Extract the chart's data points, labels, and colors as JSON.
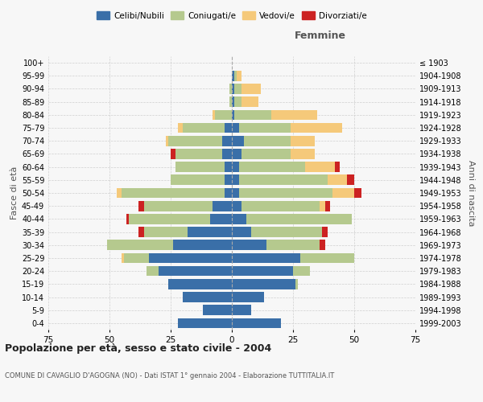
{
  "age_groups": [
    "0-4",
    "5-9",
    "10-14",
    "15-19",
    "20-24",
    "25-29",
    "30-34",
    "35-39",
    "40-44",
    "45-49",
    "50-54",
    "55-59",
    "60-64",
    "65-69",
    "70-74",
    "75-79",
    "80-84",
    "85-89",
    "90-94",
    "95-99",
    "100+"
  ],
  "birth_years": [
    "1999-2003",
    "1994-1998",
    "1989-1993",
    "1984-1988",
    "1979-1983",
    "1974-1978",
    "1969-1973",
    "1964-1968",
    "1959-1963",
    "1954-1958",
    "1949-1953",
    "1944-1948",
    "1939-1943",
    "1934-1938",
    "1929-1933",
    "1924-1928",
    "1919-1923",
    "1914-1918",
    "1909-1913",
    "1904-1908",
    "≤ 1903"
  ],
  "males": {
    "celibi": [
      22,
      12,
      20,
      26,
      30,
      34,
      24,
      18,
      9,
      8,
      3,
      3,
      3,
      4,
      4,
      3,
      0,
      0,
      0,
      0,
      0
    ],
    "coniugati": [
      0,
      0,
      0,
      0,
      5,
      10,
      27,
      18,
      33,
      28,
      42,
      22,
      20,
      19,
      22,
      17,
      7,
      1,
      1,
      0,
      0
    ],
    "vedovi": [
      0,
      0,
      0,
      0,
      0,
      1,
      0,
      0,
      0,
      0,
      2,
      0,
      0,
      0,
      1,
      2,
      1,
      0,
      0,
      0,
      0
    ],
    "divorziati": [
      0,
      0,
      0,
      0,
      0,
      0,
      0,
      2,
      1,
      2,
      0,
      0,
      0,
      2,
      0,
      0,
      0,
      0,
      0,
      0,
      0
    ]
  },
  "females": {
    "nubili": [
      20,
      8,
      13,
      26,
      25,
      28,
      14,
      8,
      6,
      4,
      3,
      3,
      3,
      4,
      5,
      3,
      1,
      1,
      1,
      1,
      0
    ],
    "coniugate": [
      0,
      0,
      0,
      1,
      7,
      22,
      22,
      29,
      43,
      32,
      38,
      36,
      27,
      20,
      19,
      21,
      15,
      3,
      3,
      1,
      0
    ],
    "vedove": [
      0,
      0,
      0,
      0,
      0,
      0,
      0,
      0,
      0,
      2,
      9,
      8,
      12,
      10,
      10,
      21,
      19,
      7,
      8,
      2,
      0
    ],
    "divorziate": [
      0,
      0,
      0,
      0,
      0,
      0,
      2,
      2,
      0,
      2,
      3,
      3,
      2,
      0,
      0,
      0,
      0,
      0,
      0,
      0,
      0
    ]
  },
  "colors": {
    "celibi_nubili": "#3a6fa8",
    "coniugati_e": "#b5c98e",
    "vedovi_e": "#f5c97a",
    "divorziati_e": "#cc2222"
  },
  "xlim": 75,
  "title1": "Popolazione per età, sesso e stato civile - 2004",
  "title2": "COMUNE DI CAVAGLIO D'AGOGNA (NO) - Dati ISTAT 1° gennaio 2004 - Elaborazione TUTTITALIA.IT",
  "xlabel_right": "Femmine",
  "ylabel_left": "Fasce di età",
  "ylabel_right": "Anni di nascita",
  "legend_labels": [
    "Celibi/Nubili",
    "Coniugati/e",
    "Vedovi/e",
    "Divorziati/e"
  ],
  "background_color": "#f7f7f7",
  "grid_color": "#cccccc"
}
